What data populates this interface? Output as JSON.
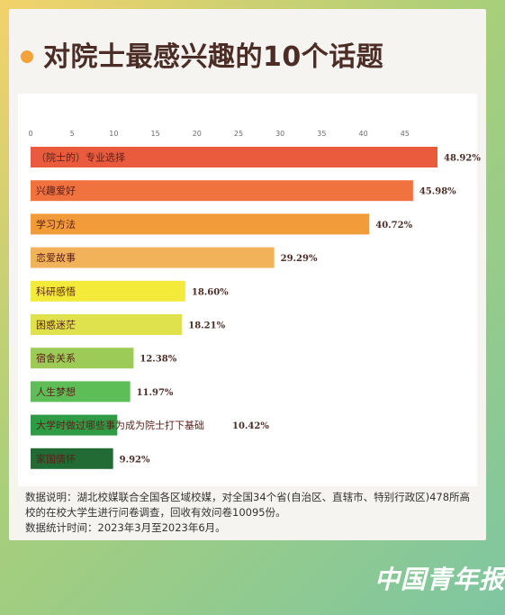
{
  "header": {
    "title": "对院士最感兴趣的10个话题"
  },
  "chart_data": {
    "type": "bar",
    "orientation": "horizontal",
    "xlim": [
      0,
      50
    ],
    "ticks": [
      0,
      5,
      10,
      15,
      20,
      25,
      30,
      35,
      40,
      45
    ],
    "categories": [
      "（院士的）专业选择",
      "兴趣爱好",
      "学习方法",
      "恋爱故事",
      "科研感悟",
      "困惑迷茫",
      "宿舍关系",
      "人生梦想",
      "大学时做过哪些事为成为院士打下基础",
      "家国情怀"
    ],
    "values": [
      48.92,
      45.98,
      40.72,
      29.29,
      18.6,
      18.21,
      12.38,
      11.97,
      10.42,
      9.92
    ],
    "value_labels": [
      "48.92%",
      "45.98%",
      "40.72%",
      "29.29%",
      "18.60%",
      "18.21%",
      "12.38%",
      "11.97%",
      "10.42%",
      "9.92%"
    ],
    "colors": [
      "#ea5b3e",
      "#f0723f",
      "#f29b3b",
      "#f2b25a",
      "#f4ea3a",
      "#dfe24d",
      "#9ccb57",
      "#5dbd57",
      "#2f9b45",
      "#236b35"
    ]
  },
  "notes": {
    "line1": "数据说明：湖北校媒联合全国各区域校媒，对全国34个省(自治区、直辖市、特别行政区)478所高校的在校大学生进行问卷调查，回收有效问卷10095份。",
    "line2": "数据统计时间：2023年3月至2023年6月。"
  },
  "brand": {
    "text": "中国青年报"
  }
}
